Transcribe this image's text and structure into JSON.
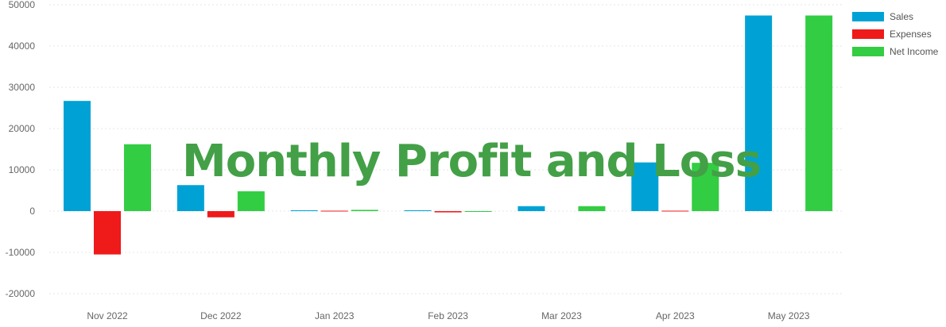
{
  "chart_data": {
    "type": "bar",
    "title": "Monthly Profit and Loss",
    "title_color": "#43a047",
    "categories": [
      "Nov 2022",
      "Dec 2022",
      "Jan 2023",
      "Feb 2023",
      "Mar 2023",
      "Apr 2023",
      "May 2023"
    ],
    "series": [
      {
        "name": "Sales",
        "color": "#00a2d5",
        "values": [
          26700,
          6300,
          200,
          200,
          1200,
          11800,
          47400
        ]
      },
      {
        "name": "Expenses",
        "color": "#ef1a1a",
        "values": [
          -10500,
          -1500,
          100,
          -300,
          0,
          100,
          0
        ]
      },
      {
        "name": "Net Income",
        "color": "#32cd43",
        "values": [
          16200,
          4800,
          300,
          -100,
          1200,
          11700,
          47400
        ]
      }
    ],
    "ylim": [
      -20000,
      50000
    ],
    "yticks": [
      -20000,
      -10000,
      0,
      10000,
      20000,
      30000,
      40000,
      50000
    ],
    "grid": true,
    "legend_position": "top-right",
    "xlabel": "",
    "ylabel": ""
  }
}
